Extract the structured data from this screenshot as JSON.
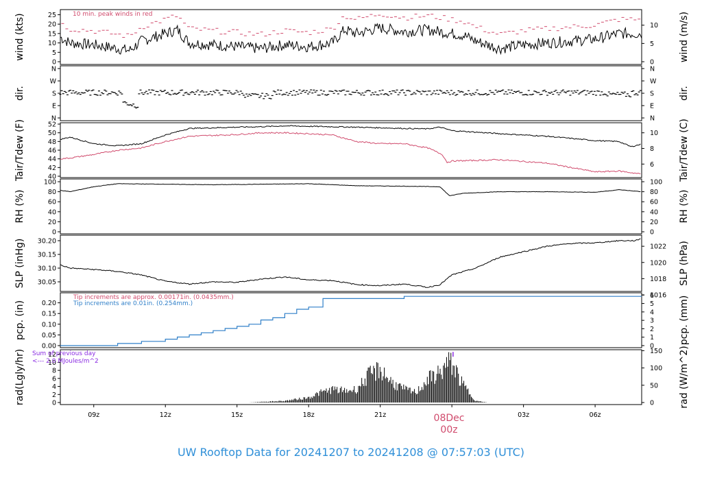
{
  "colors": {
    "peak": "#d04a6c",
    "dewpoint": "#d04a6c",
    "precip_mm": "#2f7fc8",
    "precip_in": "#d04a6c",
    "radsum": "#8a2be2",
    "title": "#2f8fd8",
    "date_label": "#d04a6c",
    "line": "#000000"
  },
  "footer": {
    "title": "UW Rooftop Data for 20241207  to  20241208 @ 07:57:03  (UTC)"
  },
  "x_axis": {
    "start_hour": 7.6,
    "end_hour": 31.95,
    "ticks": [
      {
        "hour": 9,
        "label": "09z"
      },
      {
        "hour": 12,
        "label": "12z"
      },
      {
        "hour": 15,
        "label": "15z"
      },
      {
        "hour": 18,
        "label": "18z"
      },
      {
        "hour": 21,
        "label": "21z"
      },
      {
        "hour": 27,
        "label": "03z"
      },
      {
        "hour": 30,
        "label": "06z"
      }
    ],
    "date_marker": {
      "hour": 24,
      "date": "08Dec",
      "time": "00z"
    }
  },
  "panels": {
    "wind": {
      "left_label": "wind (kts)",
      "right_label": "wind (m/s)",
      "left_ticks": [
        "0",
        "5",
        "10",
        "15",
        "20",
        "25"
      ],
      "right_ticks": [
        "0",
        "5",
        "10"
      ],
      "note": "10 min. peak winds in red"
    },
    "dir": {
      "left_label": "dir.",
      "right_label": "dir.",
      "ticks": [
        "N",
        "E",
        "S",
        "W",
        "N"
      ]
    },
    "temp": {
      "left_label": "Tair/Tdew (F)",
      "right_label": "Tair/Tdew (C)",
      "left_ticks": [
        "40",
        "42",
        "44",
        "46",
        "48",
        "50",
        "52"
      ],
      "right_ticks": [
        "6",
        "8",
        "10"
      ]
    },
    "rh": {
      "left_label": "RH (%)",
      "right_label": "RH (%)",
      "ticks": [
        "0",
        "20",
        "40",
        "60",
        "80",
        "100"
      ]
    },
    "slp": {
      "left_label": "SLP (inHg)",
      "right_label": "SLP (hPa)",
      "left_ticks": [
        "30.05",
        "30.10",
        "30.15",
        "30.20"
      ],
      "right_ticks": [
        "1016",
        "1018",
        "1020",
        "1022"
      ]
    },
    "pcp": {
      "left_label": "pcp. (in)",
      "right_label": "pcp. (mm)",
      "left_ticks": [
        "0.00",
        "0.05",
        "0.10",
        "0.15",
        "0.20"
      ],
      "right_ticks": [
        "0",
        "1",
        "2",
        "3",
        "4",
        "5",
        "6"
      ],
      "note_red": "Tip increments are approx. 0.00171in. (0.0435mm.)",
      "note_blue": "Tip increments are 0.01in. (0.254mm.)"
    },
    "rad": {
      "left_label": "rad(Lgly/hr)",
      "right_label": "rad (W/m^2)",
      "left_ticks": [
        "0",
        "2",
        "4",
        "6",
        "8",
        "10",
        "12"
      ],
      "right_ticks": [
        "0",
        "50",
        "100",
        "150"
      ],
      "sum_line1": "Sum of previous day",
      "sum_line2": "<--- 2.0 MJoules/m^2"
    }
  },
  "chart_data": {
    "type": "line",
    "x_unit": "UTC hour (24 = 00z 08Dec)",
    "series": [
      {
        "name": "wind",
        "unit": "kts",
        "x": [
          7.6,
          8,
          9,
          10,
          10.5,
          11,
          12,
          12.5,
          13,
          14,
          15,
          16,
          17,
          18,
          19,
          19.5,
          20,
          21,
          22,
          23,
          24,
          24.5,
          25,
          26,
          27,
          28,
          29,
          30,
          31,
          31.95
        ],
        "y": [
          13,
          10,
          9,
          7,
          6,
          11,
          15,
          17,
          10,
          9,
          8,
          7,
          9,
          8,
          10,
          17,
          15,
          18,
          16,
          17,
          15,
          14,
          11,
          7,
          9,
          10,
          11,
          12,
          15,
          15
        ]
      },
      {
        "name": "air temperature",
        "unit": "F",
        "x": [
          7.6,
          8,
          9,
          10,
          11,
          12,
          13,
          15,
          16,
          17,
          18,
          20,
          22,
          23,
          23.5,
          24,
          26,
          28,
          30,
          31,
          31.5,
          31.95
        ],
        "y": [
          48.5,
          49,
          47.5,
          47,
          47.5,
          49.5,
          51,
          51.3,
          51.4,
          51.6,
          51.5,
          51.3,
          51,
          50.9,
          51.3,
          50.5,
          49.8,
          49.2,
          48.2,
          48,
          46.8,
          47.4
        ]
      },
      {
        "name": "dew point",
        "unit": "F",
        "x": [
          7.6,
          8,
          9,
          10,
          11,
          12,
          13,
          15,
          16,
          17,
          18,
          19,
          20,
          21,
          22,
          23,
          23.6,
          23.8,
          24,
          26,
          28,
          30,
          31,
          31.95
        ],
        "y": [
          44,
          44.2,
          45,
          46,
          46.5,
          48,
          49.2,
          49.6,
          50,
          50,
          49.8,
          49.5,
          48,
          47.5,
          47.5,
          46.5,
          45,
          43.2,
          43.5,
          43.8,
          43,
          41,
          41.2,
          40.5
        ]
      },
      {
        "name": "relative humidity",
        "unit": "%",
        "x": [
          7.6,
          8,
          9,
          10,
          12,
          14,
          16,
          18,
          20,
          22,
          23.5,
          23.9,
          24.5,
          26,
          28,
          30,
          31,
          31.95
        ],
        "y": [
          83,
          80,
          90,
          96,
          95,
          94,
          95,
          96,
          92,
          91,
          90,
          72,
          77,
          80,
          80,
          79,
          84,
          80
        ]
      },
      {
        "name": "sea level pressure",
        "unit": "inHg",
        "x": [
          7.6,
          8,
          9,
          10,
          11,
          12,
          13,
          14,
          15,
          16,
          17,
          18,
          19,
          20,
          21,
          22,
          23,
          23.5,
          24,
          25,
          26,
          27,
          28,
          29,
          30,
          31,
          31.7,
          31.95
        ],
        "y": [
          30.112,
          30.1,
          30.095,
          30.088,
          30.075,
          30.052,
          30.042,
          30.05,
          30.048,
          30.06,
          30.068,
          30.057,
          30.055,
          30.04,
          30.036,
          30.042,
          30.03,
          30.04,
          30.075,
          30.1,
          30.14,
          30.16,
          30.18,
          30.19,
          30.192,
          30.2,
          30.2,
          30.21
        ]
      },
      {
        "name": "precipitation (0.01in. tips)",
        "unit": "in",
        "x": [
          7.6,
          9,
          10,
          11,
          12,
          12.5,
          13,
          13.5,
          14,
          14.5,
          15,
          15.5,
          16,
          16.5,
          17,
          17.5,
          18,
          18.6,
          19,
          22,
          31.95
        ],
        "y": [
          0.0,
          0.0,
          0.01,
          0.02,
          0.03,
          0.04,
          0.05,
          0.06,
          0.07,
          0.08,
          0.09,
          0.1,
          0.12,
          0.13,
          0.15,
          0.17,
          0.18,
          0.22,
          0.22,
          0.23,
          0.23
        ]
      },
      {
        "name": "radiation",
        "unit": "Lgly/hr",
        "x": [
          15.5,
          16,
          17,
          18,
          18.5,
          19,
          19.5,
          20,
          20.5,
          21,
          21.5,
          22,
          22.5,
          23,
          23.5,
          23.8,
          24,
          24.4,
          25,
          25.5
        ],
        "y": [
          0,
          0.2,
          0.5,
          1.5,
          3,
          4,
          3.5,
          4,
          8,
          10,
          6,
          4,
          3,
          7,
          9,
          11.5,
          12,
          6,
          0.5,
          0
        ]
      }
    ]
  }
}
